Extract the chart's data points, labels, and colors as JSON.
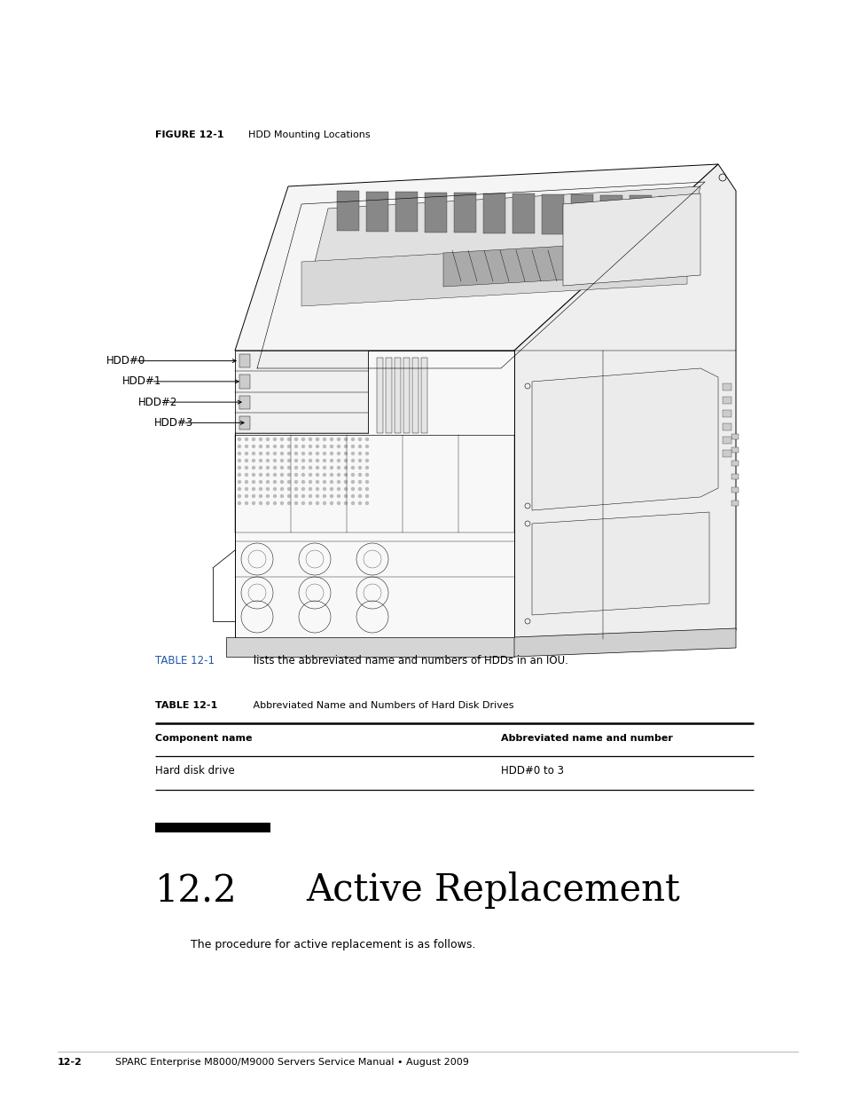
{
  "background_color": "#ffffff",
  "page_width": 9.54,
  "page_height": 12.35,
  "figure_label": "FIGURE 12-1",
  "figure_title": "HDD Mounting Locations",
  "hdd_labels": [
    "HDD#0",
    "HDD#1",
    "HDD#2",
    "HDD#3"
  ],
  "table_ref_blue": "TABLE 12-1",
  "table_ref_black": " lists the abbreviated name and numbers of HDDs in an IOU.",
  "table_label_bold": "TABLE 12-1",
  "table_label_normal": "   Abbreviated Name and Numbers of Hard Disk Drives",
  "table_col1_header": "Component name",
  "table_col2_header": "Abbreviated name and number",
  "table_col1_data": "Hard disk drive",
  "table_col2_data": "HDD#0 to 3",
  "section_number": "12.2",
  "section_title": "Active Replacement",
  "section_body": "The procedure for active replacement is as follows.",
  "footer_bold": "12-2",
  "footer_normal": "     SPARC Enterprise M8000/M9000 Servers Service Manual • August 2009",
  "blue_color": "#2255aa",
  "black_color": "#000000",
  "line_color": "#333333"
}
